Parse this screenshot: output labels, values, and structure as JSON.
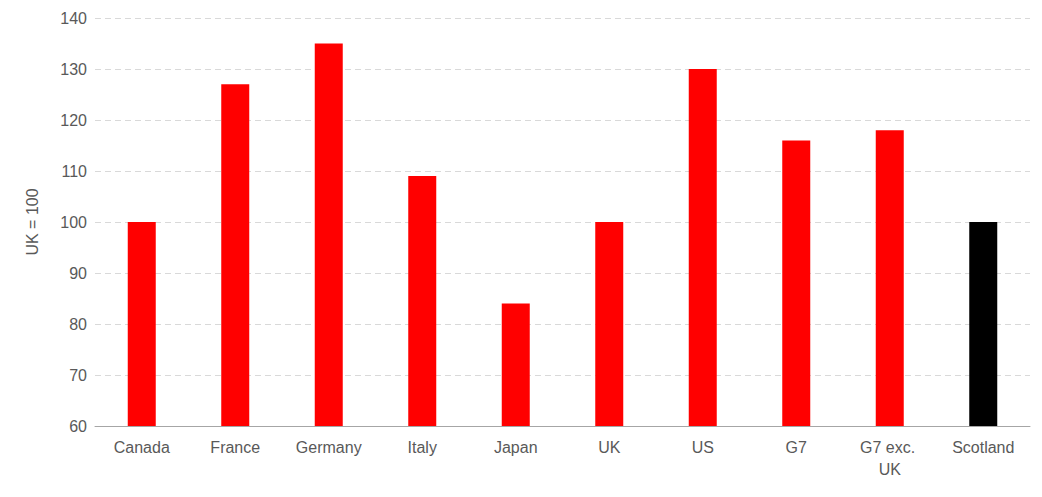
{
  "chart_data": {
    "type": "bar",
    "y_label": "UK = 100",
    "categories": [
      "Canada",
      "France",
      "Germany",
      "Italy",
      "Japan",
      "UK",
      "US",
      "G7",
      "G7 exc. UK",
      "Scotland"
    ],
    "values": [
      100,
      127,
      135,
      109,
      84,
      100,
      130,
      116,
      118,
      100
    ],
    "colors": [
      "#ff0000",
      "#ff0000",
      "#ff0000",
      "#ff0000",
      "#ff0000",
      "#ff0000",
      "#ff0000",
      "#ff0000",
      "#ff0000",
      "#000000"
    ],
    "ylim": [
      60,
      140
    ],
    "yticks": [
      60,
      70,
      80,
      90,
      100,
      110,
      120,
      130,
      140
    ],
    "grid": true
  }
}
